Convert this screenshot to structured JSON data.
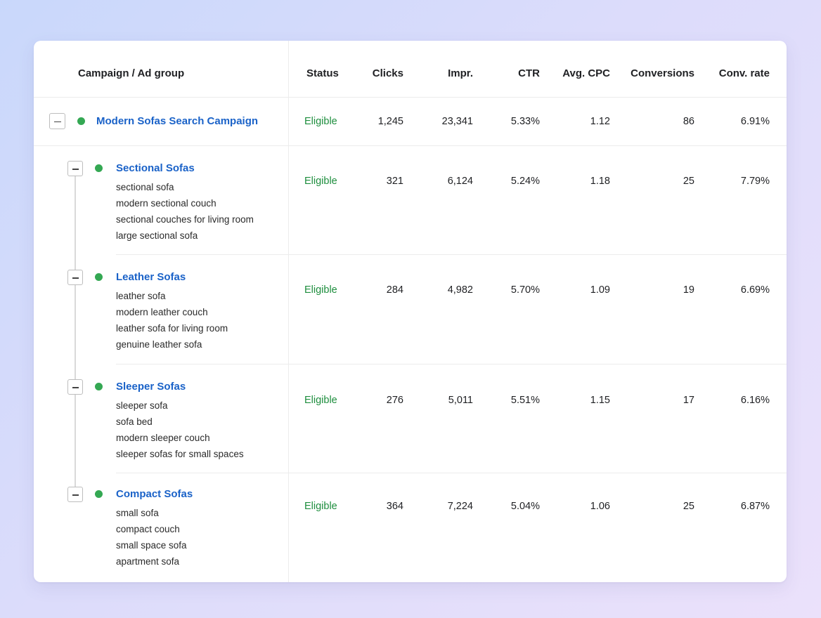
{
  "headers": {
    "name": "Campaign / Ad group",
    "status": "Status",
    "clicks": "Clicks",
    "impr": "Impr.",
    "ctr": "CTR",
    "cpc": "Avg. CPC",
    "conversions": "Conversions",
    "conv_rate": "Conv. rate"
  },
  "campaign": {
    "name": "Modern Sofas Search Campaign",
    "status": "Eligible",
    "clicks": "1,245",
    "impr": "23,341",
    "ctr": "5.33%",
    "cpc": "1.12",
    "conversions": "86",
    "conv_rate": "6.91%"
  },
  "ad_groups": [
    {
      "name": "Sectional Sofas",
      "keywords": [
        "sectional sofa",
        "modern sectional couch",
        "sectional couches for living room",
        "large sectional sofa"
      ],
      "status": "Eligible",
      "clicks": "321",
      "impr": "6,124",
      "ctr": "5.24%",
      "cpc": "1.18",
      "conversions": "25",
      "conv_rate": "7.79%"
    },
    {
      "name": "Leather Sofas",
      "keywords": [
        "leather sofa",
        "modern leather couch",
        "leather sofa for living room",
        "genuine leather sofa"
      ],
      "status": "Eligible",
      "clicks": "284",
      "impr": "4,982",
      "ctr": "5.70%",
      "cpc": "1.09",
      "conversions": "19",
      "conv_rate": "6.69%"
    },
    {
      "name": "Sleeper Sofas",
      "keywords": [
        "sleeper sofa",
        "sofa bed",
        "modern sleeper couch",
        "sleeper sofas for small spaces"
      ],
      "status": "Eligible",
      "clicks": "276",
      "impr": "5,011",
      "ctr": "5.51%",
      "cpc": "1.15",
      "conversions": "17",
      "conv_rate": "6.16%"
    },
    {
      "name": "Compact Sofas",
      "keywords": [
        "small sofa",
        "compact couch",
        "small space sofa",
        "apartment sofa"
      ],
      "status": "Eligible",
      "clicks": "364",
      "impr": "7,224",
      "ctr": "5.04%",
      "cpc": "1.06",
      "conversions": "25",
      "conv_rate": "6.87%"
    }
  ],
  "colors": {
    "status_dot": "#34a853",
    "link": "#1a62c8",
    "eligible": "#1e8e3e"
  },
  "icons": {
    "toggle": "collapse-minus-icon",
    "status": "status-dot-icon"
  }
}
